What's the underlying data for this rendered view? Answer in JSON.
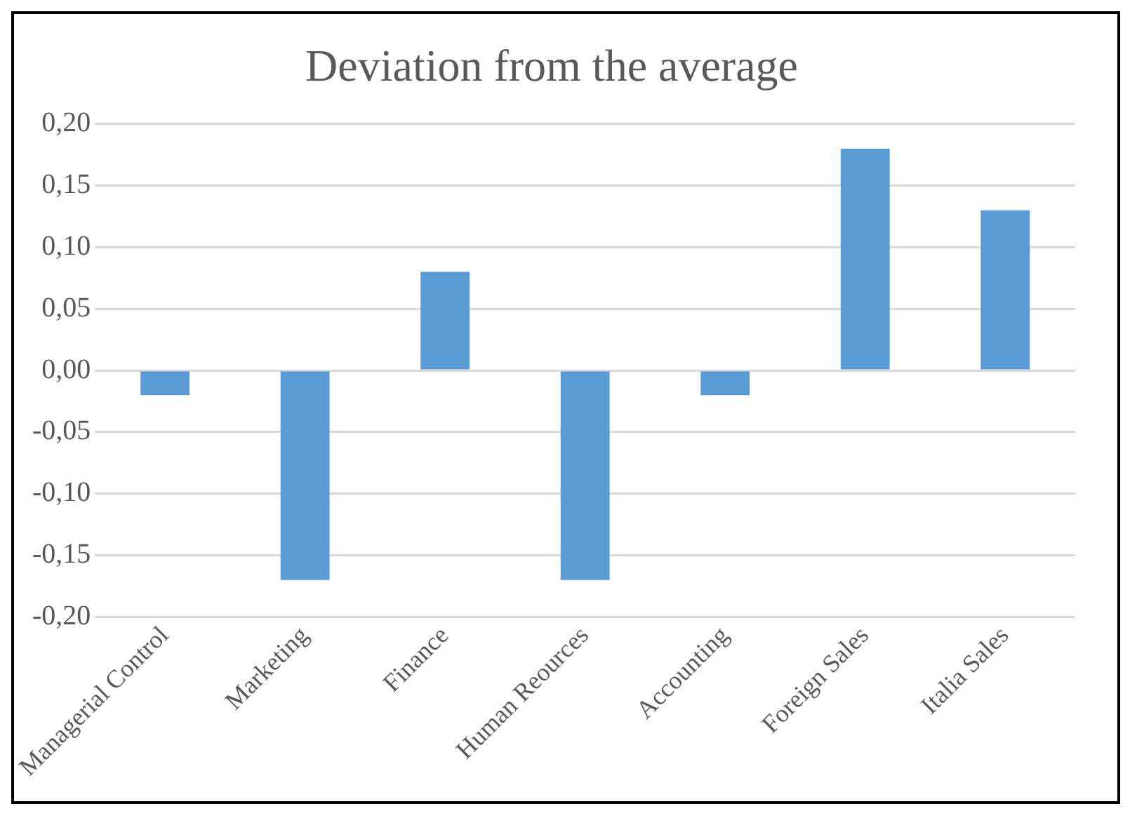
{
  "chart_data": {
    "type": "bar",
    "title": "Deviation from the average",
    "categories": [
      "Managerial Control",
      "Marketing",
      "Finance",
      "Human Reources",
      "Accounting",
      "Foreign Sales",
      "Italia Sales"
    ],
    "values": [
      -0.02,
      -0.17,
      0.08,
      -0.17,
      -0.02,
      0.18,
      0.13
    ],
    "color": "#5b9bd5",
    "ylim": [
      -0.2,
      0.2
    ],
    "yticks": [
      {
        "value": -0.2,
        "label": "-0,20"
      },
      {
        "value": -0.15,
        "label": "-0,15"
      },
      {
        "value": -0.1,
        "label": "-0,10"
      },
      {
        "value": -0.05,
        "label": "-0,05"
      },
      {
        "value": 0,
        "label": "0,00"
      },
      {
        "value": 0.05,
        "label": "0,05"
      },
      {
        "value": 0.1,
        "label": "0,10"
      },
      {
        "value": 0.15,
        "label": "0,15"
      },
      {
        "value": 0.2,
        "label": "0,20"
      }
    ],
    "grid": "y",
    "legend": false
  }
}
